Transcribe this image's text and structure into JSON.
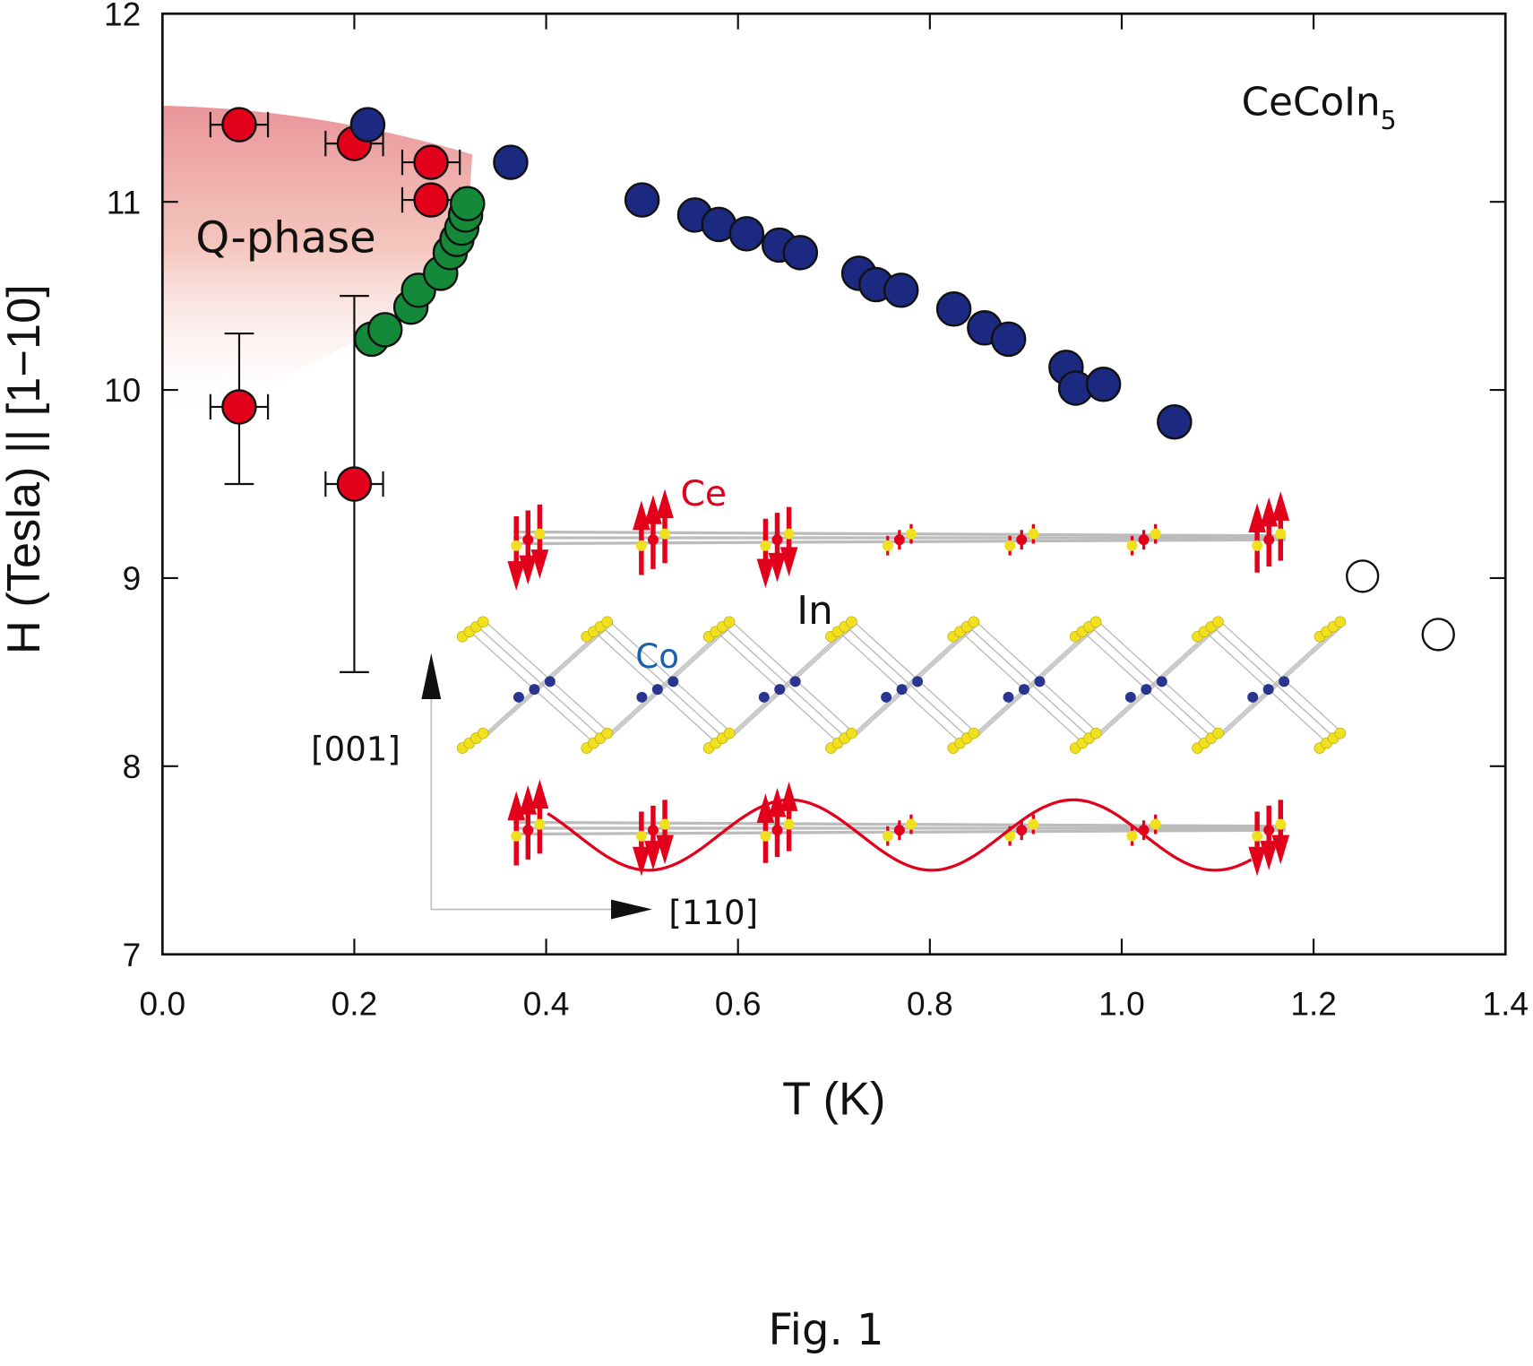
{
  "chart_data": {
    "type": "scatter",
    "xlabel": "T (K)",
    "ylabel": "H (Tesla) || [1−10]",
    "xlim": [
      0.0,
      1.4
    ],
    "ylim": [
      7,
      12
    ],
    "xticks": [
      "0.0",
      "0.2",
      "0.4",
      "0.6",
      "0.8",
      "1.0",
      "1.2",
      "1.4"
    ],
    "yticks": [
      "7",
      "8",
      "9",
      "10",
      "11",
      "12"
    ],
    "grid": false,
    "series": [
      {
        "marker": "filled-circle",
        "color": "#e3001b",
        "points": [
          {
            "x": 0.08,
            "y": 11.41,
            "xerr": 0.03
          },
          {
            "x": 0.2,
            "y": 11.31,
            "xerr": 0.03
          },
          {
            "x": 0.28,
            "y": 11.21,
            "xerr": 0.03
          },
          {
            "x": 0.28,
            "y": 11.01,
            "xerr": 0.03
          },
          {
            "x": 0.08,
            "y": 9.91,
            "xerr": 0.03,
            "yerr": [
              9.5,
              10.3
            ]
          },
          {
            "x": 0.2,
            "y": 9.5,
            "xerr": 0.03,
            "yerr": [
              8.5,
              10.5
            ]
          }
        ]
      },
      {
        "marker": "filled-circle",
        "color": "#1b2a80",
        "points": [
          {
            "x": 0.214,
            "y": 11.41
          },
          {
            "x": 0.363,
            "y": 11.21
          },
          {
            "x": 0.5,
            "y": 11.01
          },
          {
            "x": 0.555,
            "y": 10.93
          },
          {
            "x": 0.58,
            "y": 10.88
          },
          {
            "x": 0.609,
            "y": 10.83
          },
          {
            "x": 0.643,
            "y": 10.77
          },
          {
            "x": 0.665,
            "y": 10.73
          },
          {
            "x": 0.726,
            "y": 10.62
          },
          {
            "x": 0.744,
            "y": 10.56
          },
          {
            "x": 0.77,
            "y": 10.53
          },
          {
            "x": 0.825,
            "y": 10.43
          },
          {
            "x": 0.857,
            "y": 10.33
          },
          {
            "x": 0.882,
            "y": 10.27
          },
          {
            "x": 0.942,
            "y": 10.12
          },
          {
            "x": 0.952,
            "y": 10.01
          },
          {
            "x": 0.981,
            "y": 10.03
          },
          {
            "x": 1.055,
            "y": 9.83
          }
        ]
      },
      {
        "marker": "filled-circle",
        "color": "#15893a",
        "points": [
          {
            "x": 0.218,
            "y": 10.27
          },
          {
            "x": 0.232,
            "y": 10.32
          },
          {
            "x": 0.259,
            "y": 10.44
          },
          {
            "x": 0.267,
            "y": 10.53
          },
          {
            "x": 0.29,
            "y": 10.62
          },
          {
            "x": 0.3,
            "y": 10.73
          },
          {
            "x": 0.307,
            "y": 10.8
          },
          {
            "x": 0.312,
            "y": 10.86
          },
          {
            "x": 0.316,
            "y": 10.93
          },
          {
            "x": 0.318,
            "y": 10.99
          }
        ]
      },
      {
        "marker": "open-circle",
        "color": "#111111",
        "points": [
          {
            "x": 1.251,
            "y": 9.01
          },
          {
            "x": 1.33,
            "y": 8.7
          }
        ]
      }
    ],
    "shaded_region": {
      "label": "Q-phase",
      "color": "#eb9a9a"
    },
    "annotations": {
      "compound": "CeCoIn",
      "compound_subscript": "5",
      "ce_label": "Ce",
      "in_label": "In",
      "co_label": "Co",
      "dir_vertical": "[001]",
      "dir_horizontal": "[110]"
    },
    "inset_colors": {
      "ce": "#e3001b",
      "in": "#f0e020",
      "co": "#2a3590",
      "bond": "#bcbcbc"
    }
  },
  "caption": "Fig. 1"
}
